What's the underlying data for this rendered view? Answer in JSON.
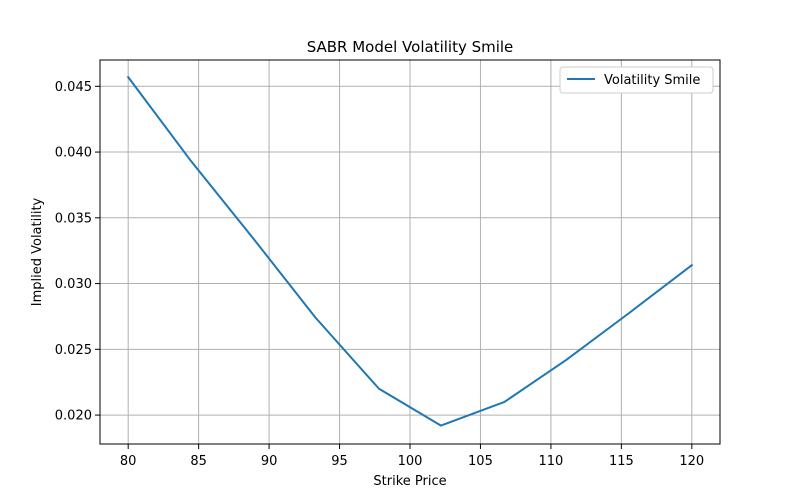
{
  "chart_data": {
    "type": "line",
    "title": "SABR Model Volatility Smile",
    "xlabel": "Strike Price",
    "ylabel": "Implied Volatility",
    "xlim": [
      78,
      122
    ],
    "ylim": [
      0.0178,
      0.047
    ],
    "xticks": [
      80,
      85,
      90,
      95,
      100,
      105,
      110,
      115,
      120
    ],
    "yticks": [
      0.02,
      0.025,
      0.03,
      0.035,
      0.04,
      0.045
    ],
    "xtick_labels": [
      "80",
      "85",
      "90",
      "95",
      "100",
      "105",
      "110",
      "115",
      "120"
    ],
    "ytick_labels": [
      "0.020",
      "0.025",
      "0.030",
      "0.035",
      "0.040",
      "0.045"
    ],
    "grid": true,
    "legend_position": "top-right",
    "series": [
      {
        "name": "Volatility Smile",
        "color": "#1f77b4",
        "x": [
          80.0,
          84.4,
          88.9,
          93.3,
          97.8,
          102.2,
          106.7,
          111.1,
          115.6,
          120.0
        ],
        "y": [
          0.0457,
          0.0394,
          0.0334,
          0.0274,
          0.022,
          0.0192,
          0.021,
          0.0242,
          0.0278,
          0.0314
        ]
      }
    ]
  }
}
